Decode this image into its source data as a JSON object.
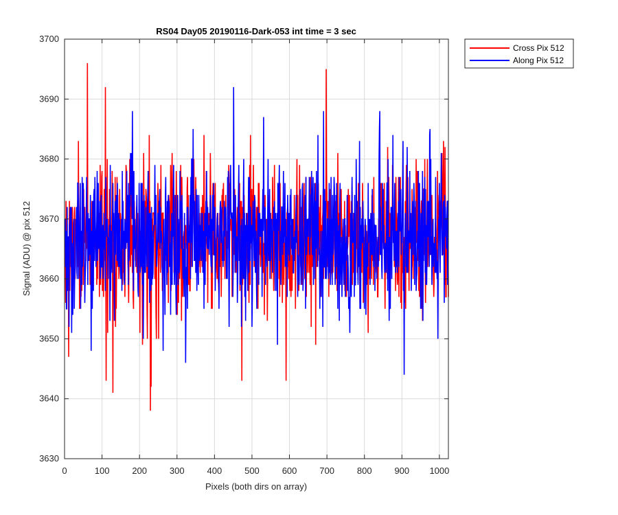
{
  "chart_data": {
    "type": "line",
    "title": "RS04 Day05 20190116-Dark-053 int time = 3 sec",
    "xlabel": "Pixels (both dirs on array)",
    "ylabel": "Signal (ADU) @ pix 512",
    "xlim": [
      0,
      1024
    ],
    "ylim": [
      3630,
      3700
    ],
    "xticks": [
      0,
      100,
      200,
      300,
      400,
      500,
      600,
      700,
      800,
      900,
      1000
    ],
    "yticks": [
      3630,
      3640,
      3650,
      3660,
      3670,
      3680,
      3690,
      3700
    ],
    "grid": true,
    "legend_position": "outside-top-right",
    "noise_model": {
      "n_points": 1024,
      "mean": 3667,
      "std": 6
    },
    "series": [
      {
        "name": "Cross Pix 512",
        "color": "#ff0000",
        "highlights": [
          {
            "x": 60,
            "y": 3696
          },
          {
            "x": 108,
            "y": 3692
          },
          {
            "x": 110,
            "y": 3643
          },
          {
            "x": 128,
            "y": 3641
          },
          {
            "x": 228,
            "y": 3638
          },
          {
            "x": 230,
            "y": 3642
          },
          {
            "x": 697,
            "y": 3695
          },
          {
            "x": 472,
            "y": 3643
          },
          {
            "x": 590,
            "y": 3643
          },
          {
            "x": 10,
            "y": 3647
          }
        ]
      },
      {
        "name": "Along Pix 512",
        "color": "#0000ff",
        "highlights": [
          {
            "x": 450,
            "y": 3692
          },
          {
            "x": 905,
            "y": 3644
          },
          {
            "x": 180,
            "y": 3688
          },
          {
            "x": 690,
            "y": 3688
          },
          {
            "x": 840,
            "y": 3688
          },
          {
            "x": 70,
            "y": 3648
          },
          {
            "x": 262,
            "y": 3648
          },
          {
            "x": 995,
            "y": 3650
          }
        ]
      }
    ]
  }
}
